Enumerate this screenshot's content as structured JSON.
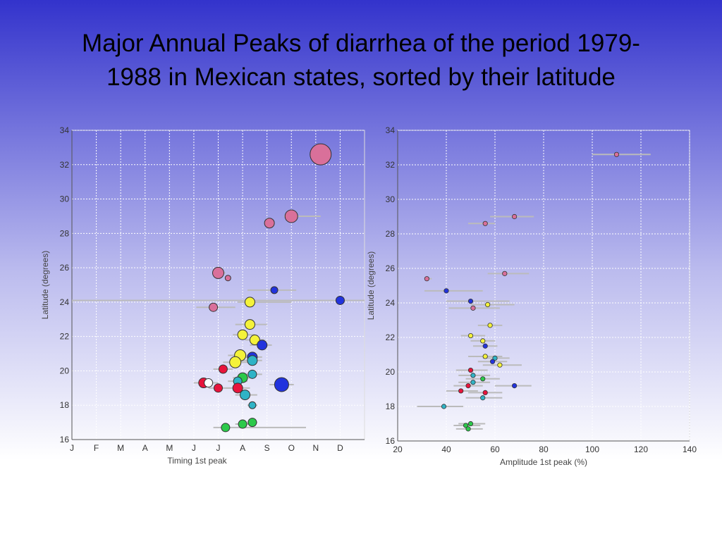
{
  "slide": {
    "title_line1": "Major Annual Peaks of diarrhea of the period 1979-",
    "title_line2": "1988 in Mexican states, sorted by their latitude"
  },
  "colors": {
    "pink": "#d9709a",
    "red": "#e8143c",
    "yellow": "#f4f23a",
    "green": "#2cc94a",
    "cyan": "#2fb3c6",
    "blue": "#2233dd"
  },
  "chart_data": [
    {
      "type": "scatter",
      "title": "",
      "xlabel": "Timing 1st peak",
      "ylabel": "Latitude (degrees)",
      "x_categories": [
        "J",
        "F",
        "M",
        "A",
        "M",
        "J",
        "J",
        "A",
        "S",
        "O",
        "N",
        "D"
      ],
      "xlim": [
        0,
        12
      ],
      "ylim": [
        16,
        34
      ],
      "yticks": [
        16,
        18,
        20,
        22,
        24,
        26,
        28,
        30,
        32,
        34
      ],
      "grid": true,
      "points": [
        {
          "x": 10.2,
          "y": 32.6,
          "size": 15,
          "color": "pink",
          "err": [
            9.8,
            10.3
          ]
        },
        {
          "x": 9.0,
          "y": 29.0,
          "size": 9,
          "color": "pink",
          "err": [
            8.7,
            10.2
          ]
        },
        {
          "x": 8.1,
          "y": 28.6,
          "size": 7,
          "color": "pink",
          "err": [
            7.9,
            8.3
          ]
        },
        {
          "x": 6.0,
          "y": 25.7,
          "size": 8,
          "color": "pink",
          "err": [
            5.8,
            6.3
          ]
        },
        {
          "x": 6.4,
          "y": 25.4,
          "size": 4,
          "color": "pink",
          "err": [
            6.4,
            6.4
          ]
        },
        {
          "x": 8.3,
          "y": 24.7,
          "size": 5,
          "color": "blue",
          "err": [
            7.2,
            9.2
          ]
        },
        {
          "x": 11.0,
          "y": 24.1,
          "size": 6,
          "color": "blue",
          "err": [
            0.0,
            12.0
          ]
        },
        {
          "x": 7.3,
          "y": 24.0,
          "size": 7,
          "color": "yellow",
          "err": [
            6.8,
            9.0
          ]
        },
        {
          "x": 5.8,
          "y": 23.7,
          "size": 6,
          "color": "pink",
          "err": [
            5.1,
            6.7
          ]
        },
        {
          "x": 7.3,
          "y": 22.7,
          "size": 7,
          "color": "yellow",
          "err": [
            6.7,
            8.0
          ]
        },
        {
          "x": 7.0,
          "y": 22.1,
          "size": 7,
          "color": "yellow",
          "err": [
            6.6,
            7.5
          ]
        },
        {
          "x": 7.5,
          "y": 21.8,
          "size": 7,
          "color": "yellow",
          "err": [
            7.1,
            7.9
          ]
        },
        {
          "x": 7.8,
          "y": 21.5,
          "size": 7,
          "color": "blue",
          "err": [
            7.3,
            8.2
          ]
        },
        {
          "x": 6.9,
          "y": 20.9,
          "size": 8,
          "color": "yellow",
          "err": [
            6.4,
            7.4
          ]
        },
        {
          "x": 7.4,
          "y": 20.8,
          "size": 7,
          "color": "blue",
          "err": [
            7.0,
            7.8
          ]
        },
        {
          "x": 7.4,
          "y": 20.6,
          "size": 7,
          "color": "cyan",
          "err": [
            7.0,
            7.8
          ]
        },
        {
          "x": 6.7,
          "y": 20.5,
          "size": 8,
          "color": "yellow",
          "err": [
            6.2,
            7.2
          ]
        },
        {
          "x": 6.2,
          "y": 20.1,
          "size": 6,
          "color": "red",
          "err": [
            5.8,
            6.6
          ]
        },
        {
          "x": 7.4,
          "y": 19.8,
          "size": 6,
          "color": "cyan",
          "err": [
            7.0,
            7.8
          ]
        },
        {
          "x": 7.0,
          "y": 19.6,
          "size": 7,
          "color": "green",
          "err": [
            6.6,
            7.4
          ]
        },
        {
          "x": 6.8,
          "y": 19.4,
          "size": 6,
          "color": "cyan",
          "err": [
            6.4,
            7.2
          ]
        },
        {
          "x": 5.4,
          "y": 19.3,
          "size": 7,
          "color": "red",
          "err": [
            5.0,
            5.9
          ]
        },
        {
          "x": 5.6,
          "y": 19.3,
          "size": 6,
          "color": "white",
          "err": [
            5.2,
            6.0
          ]
        },
        {
          "x": 6.0,
          "y": 19.0,
          "size": 6,
          "color": "red",
          "err": [
            5.6,
            6.5
          ]
        },
        {
          "x": 6.8,
          "y": 19.0,
          "size": 7,
          "color": "red",
          "err": [
            6.3,
            7.3
          ]
        },
        {
          "x": 8.6,
          "y": 19.2,
          "size": 10,
          "color": "blue",
          "err": [
            8.1,
            9.1
          ]
        },
        {
          "x": 7.1,
          "y": 18.6,
          "size": 7,
          "color": "cyan",
          "err": [
            6.7,
            7.6
          ]
        },
        {
          "x": 7.4,
          "y": 18.0,
          "size": 5,
          "color": "cyan",
          "err": [
            7.2,
            7.6
          ]
        },
        {
          "x": 7.0,
          "y": 16.9,
          "size": 6,
          "color": "green",
          "err": [
            6.7,
            7.3
          ]
        },
        {
          "x": 7.4,
          "y": 17.0,
          "size": 6,
          "color": "green",
          "err": [
            7.2,
            7.6
          ]
        },
        {
          "x": 6.3,
          "y": 16.7,
          "size": 6,
          "color": "green",
          "err": [
            5.8,
            9.6
          ]
        }
      ]
    },
    {
      "type": "scatter",
      "title": "",
      "xlabel": "Amplitude 1st peak (%)",
      "ylabel": "Latitude (degrees)",
      "xlim": [
        20,
        140
      ],
      "xticks": [
        20,
        40,
        60,
        80,
        100,
        120,
        140
      ],
      "ylim": [
        16,
        34
      ],
      "yticks": [
        16,
        18,
        20,
        22,
        24,
        26,
        28,
        30,
        32,
        34
      ],
      "grid": true,
      "points": [
        {
          "x": 110,
          "y": 32.6,
          "color": "pink",
          "err": [
            100,
            124
          ]
        },
        {
          "x": 68,
          "y": 29.0,
          "color": "pink",
          "err": [
            58,
            76
          ]
        },
        {
          "x": 56,
          "y": 28.6,
          "color": "pink",
          "err": [
            49,
            60
          ]
        },
        {
          "x": 64,
          "y": 25.7,
          "color": "pink",
          "err": [
            57,
            74
          ]
        },
        {
          "x": 32,
          "y": 25.4,
          "color": "pink",
          "err": [
            31,
            34
          ]
        },
        {
          "x": 40,
          "y": 24.7,
          "color": "blue",
          "err": [
            31,
            55
          ]
        },
        {
          "x": 50,
          "y": 24.1,
          "color": "blue",
          "err": [
            40,
            66
          ]
        },
        {
          "x": 57,
          "y": 23.9,
          "color": "yellow",
          "err": [
            50,
            68
          ]
        },
        {
          "x": 51,
          "y": 23.7,
          "color": "pink",
          "err": [
            41,
            62
          ]
        },
        {
          "x": 58,
          "y": 22.7,
          "color": "yellow",
          "err": [
            53,
            63
          ]
        },
        {
          "x": 50,
          "y": 22.1,
          "color": "yellow",
          "err": [
            46,
            56
          ]
        },
        {
          "x": 55,
          "y": 21.8,
          "color": "yellow",
          "err": [
            50,
            60
          ]
        },
        {
          "x": 56,
          "y": 21.5,
          "color": "blue",
          "err": [
            51,
            61
          ]
        },
        {
          "x": 56,
          "y": 20.9,
          "color": "yellow",
          "err": [
            49,
            63
          ]
        },
        {
          "x": 60,
          "y": 20.8,
          "color": "cyan",
          "err": [
            55,
            66
          ]
        },
        {
          "x": 59,
          "y": 20.6,
          "color": "blue",
          "err": [
            53,
            65
          ]
        },
        {
          "x": 62,
          "y": 20.4,
          "color": "yellow",
          "err": [
            55,
            71
          ]
        },
        {
          "x": 50,
          "y": 20.1,
          "color": "red",
          "err": [
            44,
            57
          ]
        },
        {
          "x": 51,
          "y": 19.8,
          "color": "cyan",
          "err": [
            45,
            58
          ]
        },
        {
          "x": 55,
          "y": 19.6,
          "color": "green",
          "err": [
            48,
            62
          ]
        },
        {
          "x": 51,
          "y": 19.4,
          "color": "cyan",
          "err": [
            45,
            58
          ]
        },
        {
          "x": 49,
          "y": 19.2,
          "color": "red",
          "err": [
            43,
            55
          ]
        },
        {
          "x": 68,
          "y": 19.2,
          "color": "blue",
          "err": [
            60,
            75
          ]
        },
        {
          "x": 46,
          "y": 18.9,
          "color": "red",
          "err": [
            40,
            53
          ]
        },
        {
          "x": 56,
          "y": 18.8,
          "color": "red",
          "err": [
            49,
            63
          ]
        },
        {
          "x": 55,
          "y": 18.5,
          "color": "cyan",
          "err": [
            48,
            63
          ]
        },
        {
          "x": 39,
          "y": 18.0,
          "color": "cyan",
          "err": [
            28,
            47
          ]
        },
        {
          "x": 50,
          "y": 17.0,
          "color": "green",
          "err": [
            45,
            56
          ]
        },
        {
          "x": 48,
          "y": 16.9,
          "color": "green",
          "err": [
            43,
            54
          ]
        },
        {
          "x": 49,
          "y": 16.7,
          "color": "green",
          "err": [
            44,
            55
          ]
        }
      ]
    }
  ]
}
